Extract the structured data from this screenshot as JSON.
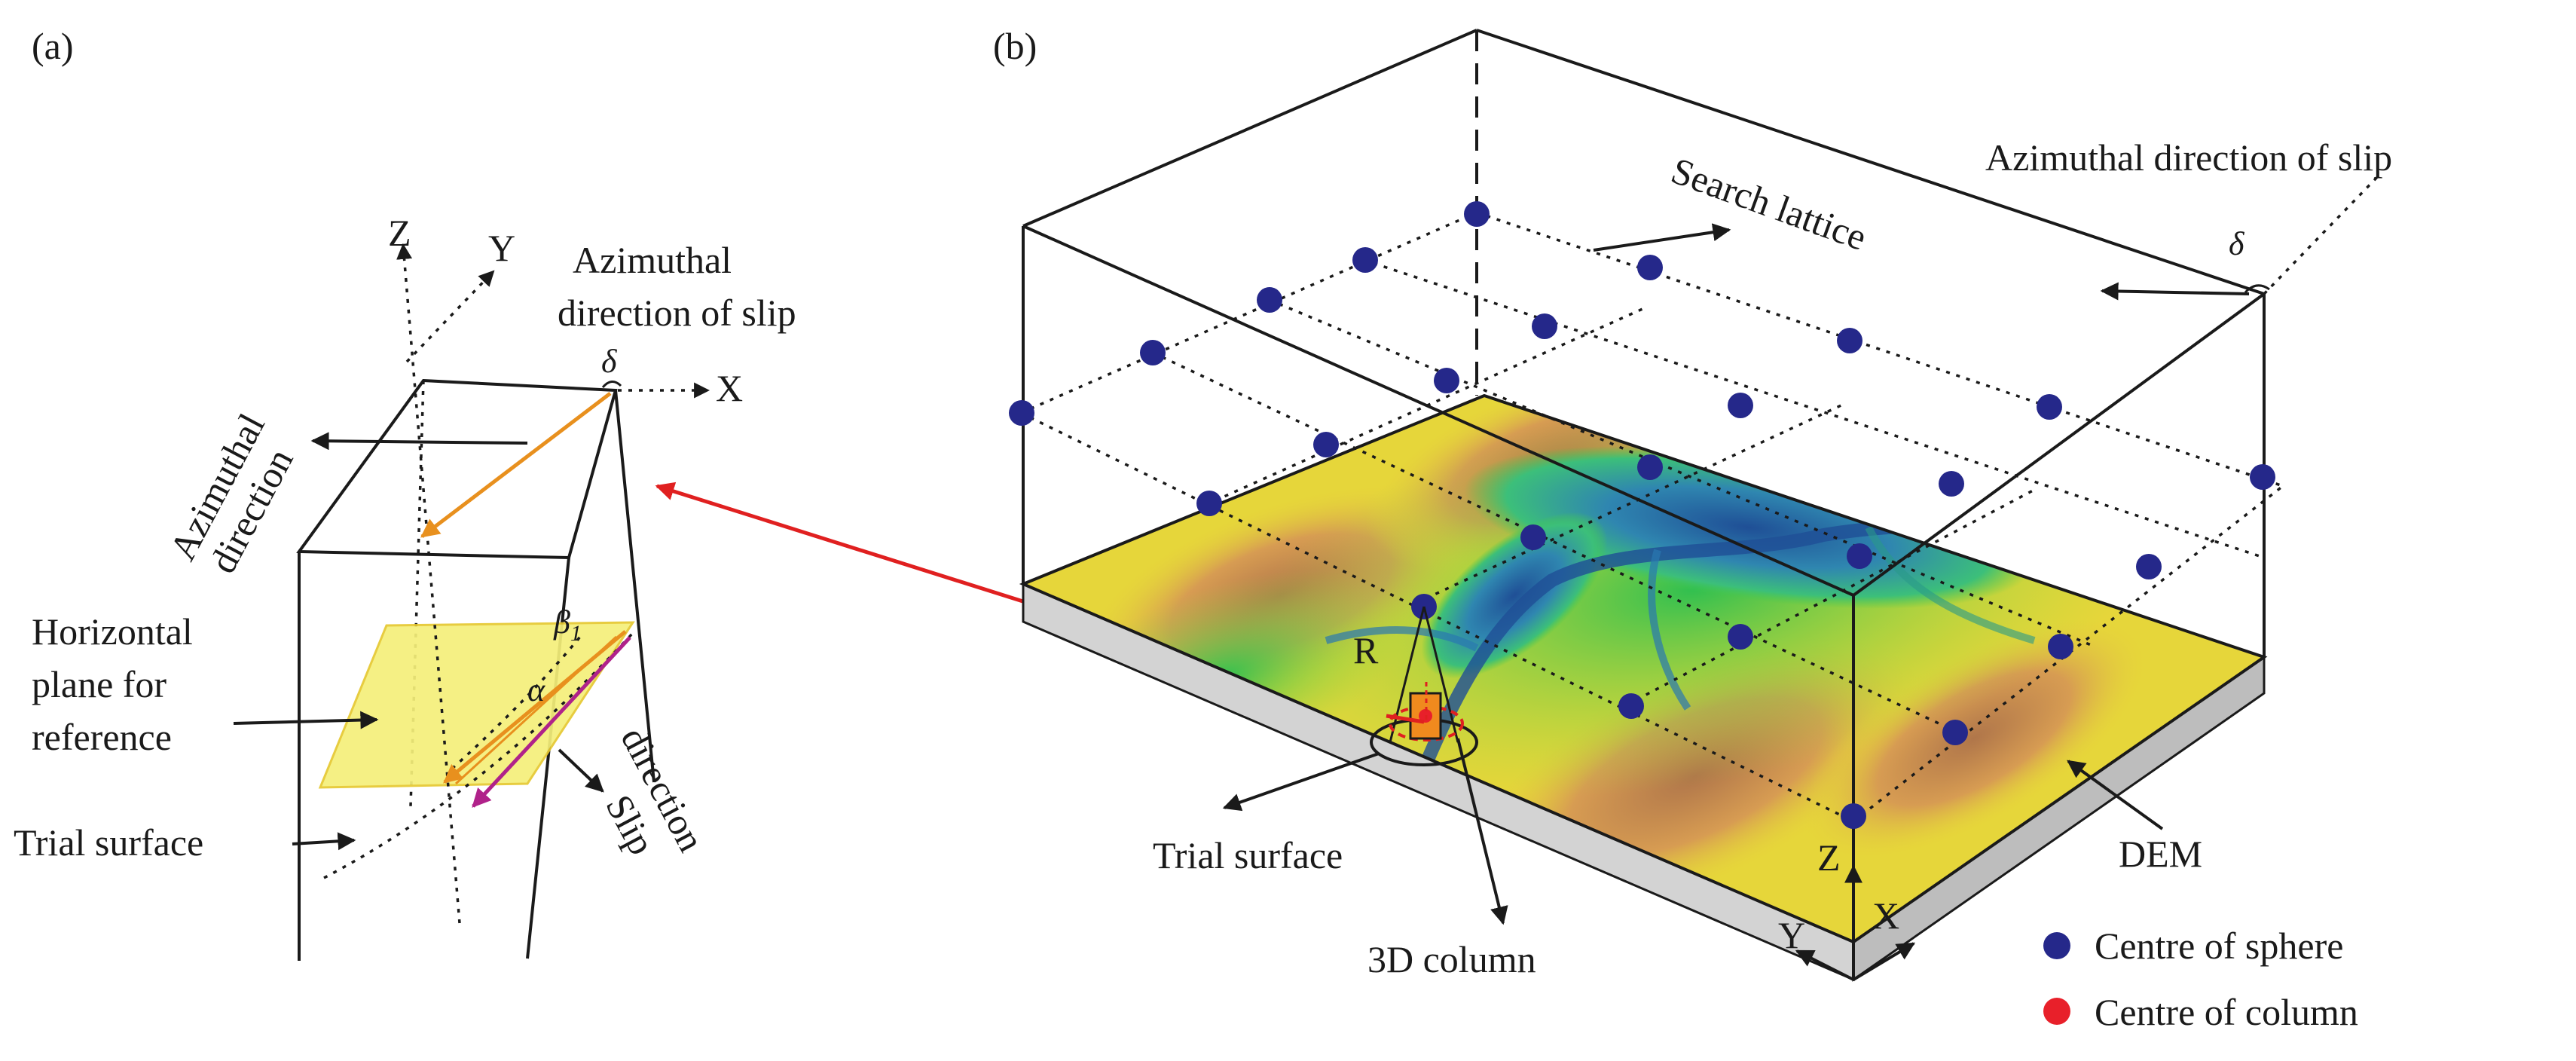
{
  "panel_a": {
    "label": "(a)",
    "axis_z": "Z",
    "axis_y": "Y",
    "axis_x": "X",
    "azimuthal_direction_1": "Azimuthal",
    "azimuthal_direction_2": "direction",
    "azimuthal_slip_1": "Azimuthal",
    "azimuthal_slip_2": "direction of slip",
    "delta": "δ",
    "beta": "β",
    "beta_sub": "1",
    "alpha": "α",
    "horizontal_plane_1": "Horizontal",
    "horizontal_plane_2": "plane for",
    "horizontal_plane_3": "reference",
    "trial_surface": "Trial surface",
    "slip_direction_1": "Slip",
    "slip_direction_2": "direction"
  },
  "panel_b": {
    "label": "(b)",
    "azimuthal_slip": "Azimuthal direction of slip",
    "delta": "δ",
    "search_lattice": "Search lattice",
    "radius": "R",
    "trial_surface": "Trial surface",
    "column_3d": "3D column",
    "dem": "DEM",
    "axis_z": "Z",
    "axis_y": "Y",
    "axis_x": "X"
  },
  "legend": {
    "sphere_centre": "Centre of sphere",
    "column_centre": "Centre of column"
  },
  "colors": {
    "sphere": "#25288a",
    "column": "#e8202a",
    "plane": "#f5ef7a",
    "orange": "#e8901e",
    "magenta": "#b0228a",
    "red_arrow": "#e02020",
    "dem_green": "#39c43a",
    "dem_yellow": "#e8e23a",
    "dem_brown": "#b87a4a",
    "dem_blue": "#2a6aa8",
    "base_grey": "#d0d0d0"
  }
}
